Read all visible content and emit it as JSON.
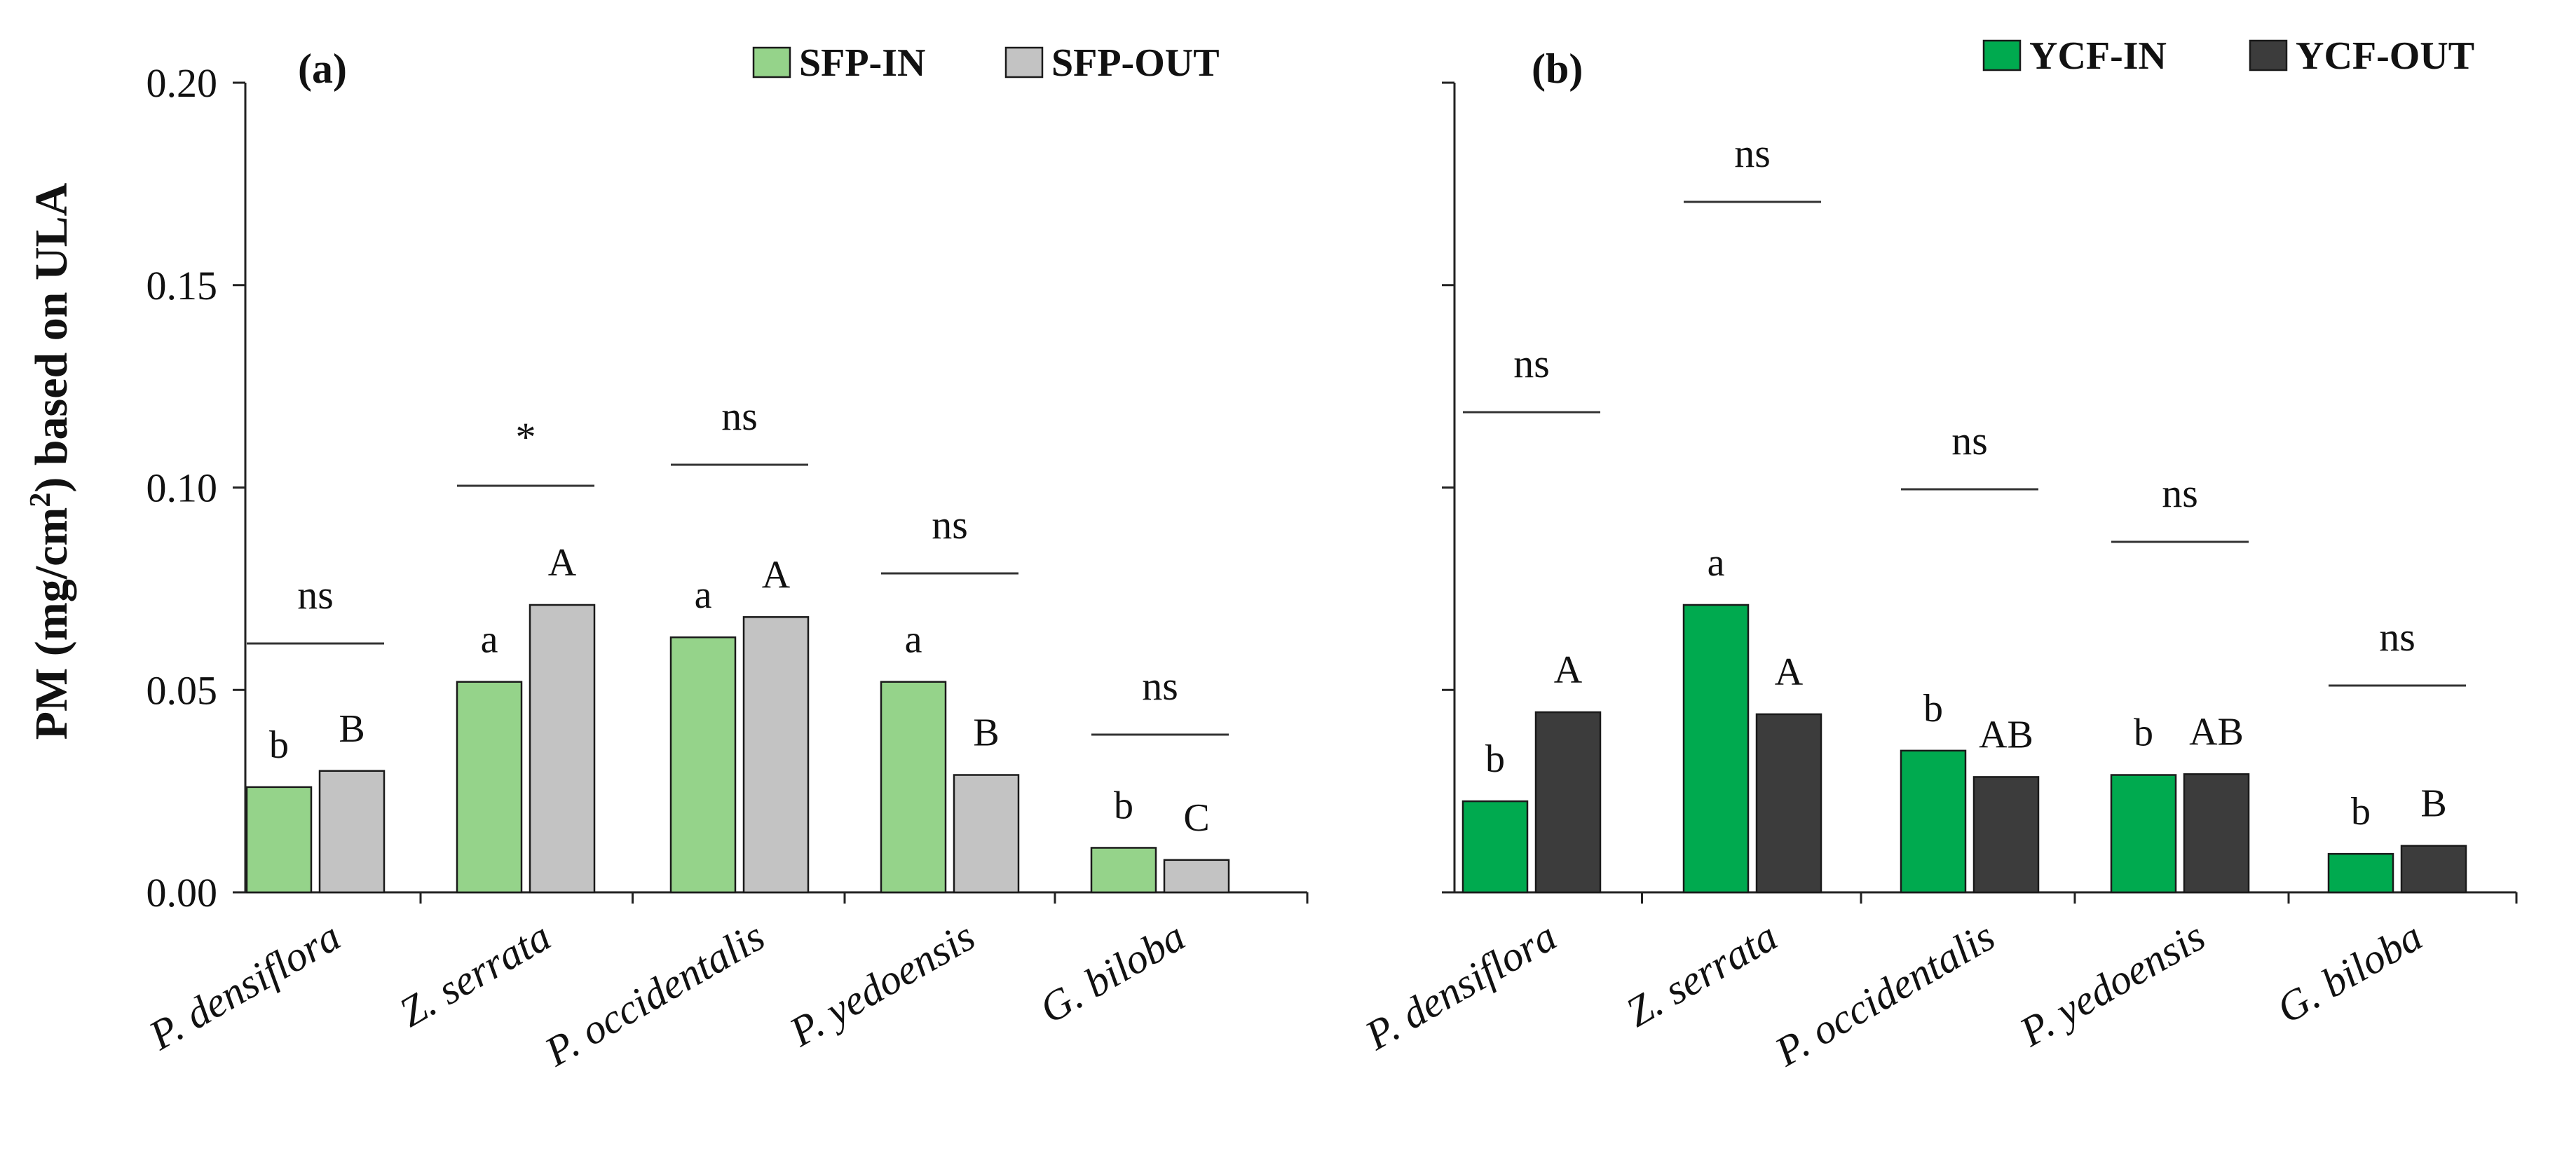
{
  "chart_data": [
    {
      "panel": "(a)",
      "type": "bar",
      "ylabel_main": "PM (mg/cm",
      "ylabel_sup": "2",
      "ylabel_rest": ") based on ULA",
      "ylim": [
        0,
        0.2
      ],
      "yticks": [
        0,
        0.05,
        0.1,
        0.15,
        0.2
      ],
      "ytick_labels": [
        "0.00",
        "0.05",
        "0.10",
        "0.15",
        "0.20"
      ],
      "categories": [
        "P. densiflora",
        "Z. serrata",
        "P. occidentalis",
        "P. yedoensis",
        "G. biloba"
      ],
      "series": [
        {
          "name": "SFP-IN",
          "color": "#95d38a",
          "values": [
            0.026,
            0.052,
            0.063,
            0.052,
            0.011
          ],
          "letters": [
            "b",
            "a",
            "a",
            "a",
            "b"
          ]
        },
        {
          "name": "SFP-OUT",
          "color": "#c3c3c3",
          "values": [
            0.03,
            0.071,
            0.068,
            0.029,
            0.008
          ],
          "letters": [
            "B",
            "A",
            "A",
            "B",
            "C"
          ]
        }
      ],
      "significance": [
        "ns",
        "*",
        "ns",
        "ns",
        "ns"
      ]
    },
    {
      "panel": "(b)",
      "type": "bar",
      "ylim": [
        0,
        0.2
      ],
      "categories": [
        "P. densiflora",
        "Z. serrata",
        "P. occidentalis",
        "P. yedoensis",
        "G. biloba"
      ],
      "series": [
        {
          "name": "YCF-IN",
          "color": "#00aa4f",
          "values": [
            0.0225,
            0.071,
            0.035,
            0.029,
            0.0095
          ],
          "letters": [
            "b",
            "a",
            "b",
            "b",
            "b"
          ]
        },
        {
          "name": "YCF-OUT",
          "color": "#3c3c3c",
          "values": [
            0.0445,
            0.044,
            0.0285,
            0.0292,
            0.0115
          ],
          "letters": [
            "A",
            "A",
            "AB",
            "AB",
            "B"
          ]
        }
      ],
      "significance": [
        "ns",
        "ns",
        "ns",
        "ns",
        "ns"
      ]
    }
  ]
}
